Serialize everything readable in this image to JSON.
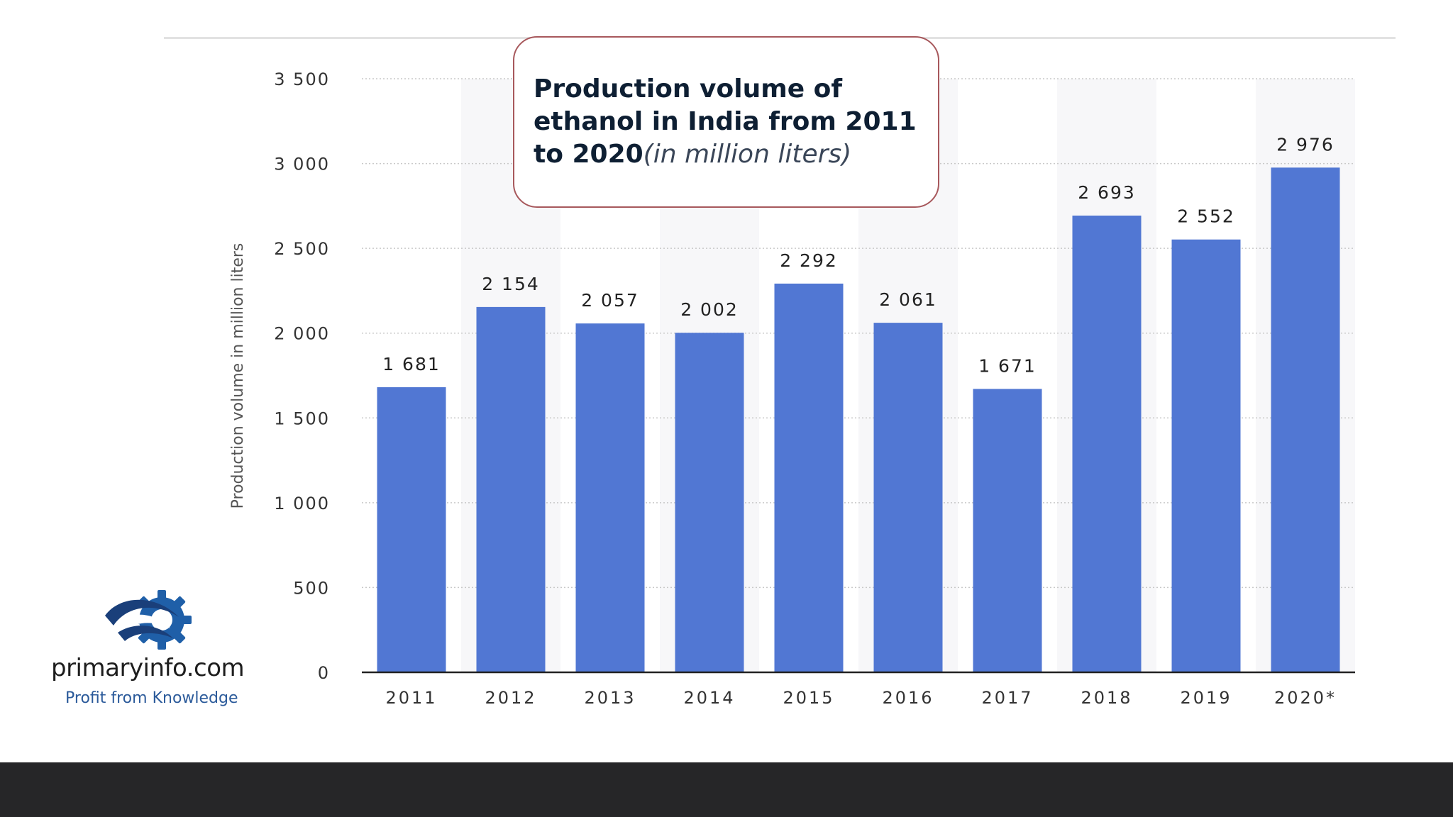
{
  "chart_data": {
    "type": "bar",
    "title": "Production volume of ethanol in India from 2011 to 2020",
    "subtitle": "(in million liters)",
    "xlabel": "",
    "ylabel": "Production volume in million liters",
    "categories": [
      "2011",
      "2012",
      "2013",
      "2014",
      "2015",
      "2016",
      "2017",
      "2018",
      "2019",
      "2020*"
    ],
    "values": [
      1681,
      2154,
      2057,
      2002,
      2292,
      2061,
      1671,
      2693,
      2552,
      2976
    ],
    "value_labels": [
      "1 681",
      "2 154",
      "2 057",
      "2 002",
      "2 292",
      "2 061",
      "1 671",
      "2 693",
      "2 552",
      "2 976"
    ],
    "ylim": [
      0,
      3500
    ],
    "yticks": [
      0,
      500,
      1000,
      1500,
      2000,
      2500,
      3000,
      3500
    ],
    "ytick_labels": [
      "0",
      "500",
      "1 000",
      "1 500",
      "2 000",
      "2 500",
      "3 000",
      "3 500"
    ],
    "grid": true,
    "legend": "none",
    "bar_color": "#5177d3"
  },
  "brand": {
    "name": "primaryinfo.com",
    "tagline": "Profit from Knowledge",
    "logo_icon": "gear-swoosh-icon"
  },
  "colors": {
    "bar": "#5177d3",
    "grid": "#c9c9c9",
    "axis_text": "#333333",
    "title_border": "#a7585c",
    "title_text": "#0e1f33",
    "logo_blue": "#1f5fa8",
    "footer": "#262628"
  }
}
